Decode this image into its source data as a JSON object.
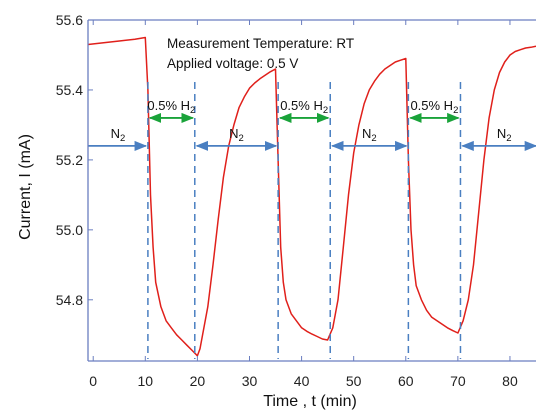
{
  "chart_data": {
    "type": "line",
    "title": "",
    "xlabel": "Time , t (min)",
    "ylabel": "Current, I (mA)",
    "xlim": [
      -1,
      85
    ],
    "ylim": [
      54.625,
      55.6
    ],
    "xticks": [
      0,
      10,
      20,
      30,
      40,
      50,
      60,
      70,
      80
    ],
    "yticks": [
      54.8,
      55.0,
      55.2,
      55.4,
      55.6
    ],
    "ytick_labels": [
      "54.8",
      "55.0",
      "55.2",
      "55.4",
      "55.6"
    ],
    "grid": false,
    "annotations": {
      "temperature": "Measurement Temperature: RT",
      "voltage": "Applied voltage: 0.5 V"
    },
    "switch_times": [
      10.5,
      19.5,
      35.5,
      45.5,
      60.5,
      70.5
    ],
    "intervals": [
      {
        "gas": "N",
        "sub": "2",
        "pct": "",
        "start": -1,
        "end": 10.5,
        "color": "#4a7fc1"
      },
      {
        "gas": "0.5% H",
        "sub": "2",
        "pct": "",
        "start": 10.5,
        "end": 19.5,
        "color": "#1aa33a"
      },
      {
        "gas": "N",
        "sub": "2",
        "pct": "",
        "start": 19.5,
        "end": 35.5,
        "color": "#4a7fc1"
      },
      {
        "gas": "0.5% H",
        "sub": "2",
        "pct": "",
        "start": 35.5,
        "end": 45.5,
        "color": "#1aa33a"
      },
      {
        "gas": "N",
        "sub": "2",
        "pct": "",
        "start": 45.5,
        "end": 60.5,
        "color": "#4a7fc1"
      },
      {
        "gas": "0.5% H",
        "sub": "2",
        "pct": "",
        "start": 60.5,
        "end": 70.5,
        "color": "#1aa33a"
      },
      {
        "gas": "N",
        "sub": "2",
        "pct": "",
        "start": 70.5,
        "end": 85,
        "color": "#4a7fc1"
      }
    ],
    "series": [
      {
        "color": "#e0201b",
        "x": [
          -1,
          2,
          5,
          8,
          10,
          10.5,
          11,
          11.5,
          12,
          13,
          14,
          15,
          16,
          17,
          18,
          19,
          20,
          20.5,
          21,
          22,
          23,
          24,
          25,
          26,
          27,
          28,
          29,
          30,
          31,
          32,
          33,
          34,
          35,
          35.5,
          36,
          36.5,
          37,
          38,
          39,
          40,
          41,
          42,
          43,
          44,
          45,
          46,
          47,
          48,
          49,
          50,
          51,
          52,
          53,
          54,
          55,
          56,
          57,
          58,
          59,
          60,
          60.5,
          61,
          61.5,
          62,
          63,
          64,
          65,
          66,
          67,
          68,
          69,
          70,
          71,
          72,
          73,
          74,
          75,
          76,
          77,
          78,
          79,
          80,
          81,
          82,
          83,
          84,
          85
        ],
        "y": [
          55.53,
          55.535,
          55.54,
          55.545,
          55.55,
          55.4,
          55.1,
          54.95,
          54.85,
          54.78,
          54.74,
          54.72,
          54.7,
          54.685,
          54.67,
          54.655,
          54.64,
          54.66,
          54.7,
          54.78,
          54.9,
          55.03,
          55.15,
          55.24,
          55.3,
          55.35,
          55.38,
          55.405,
          55.42,
          55.432,
          55.442,
          55.452,
          55.46,
          55.2,
          54.95,
          54.85,
          54.8,
          54.76,
          54.74,
          54.72,
          54.71,
          54.702,
          54.695,
          54.688,
          54.685,
          54.72,
          54.8,
          54.95,
          55.1,
          55.22,
          55.3,
          55.36,
          55.4,
          55.425,
          55.445,
          55.46,
          55.47,
          55.48,
          55.485,
          55.49,
          55.2,
          55.0,
          54.9,
          54.84,
          54.8,
          54.77,
          54.75,
          54.74,
          54.73,
          54.72,
          54.712,
          54.705,
          54.74,
          54.8,
          54.9,
          55.05,
          55.2,
          55.32,
          55.4,
          55.45,
          55.48,
          55.5,
          55.51,
          55.515,
          55.52,
          55.522,
          55.525
        ]
      }
    ]
  }
}
